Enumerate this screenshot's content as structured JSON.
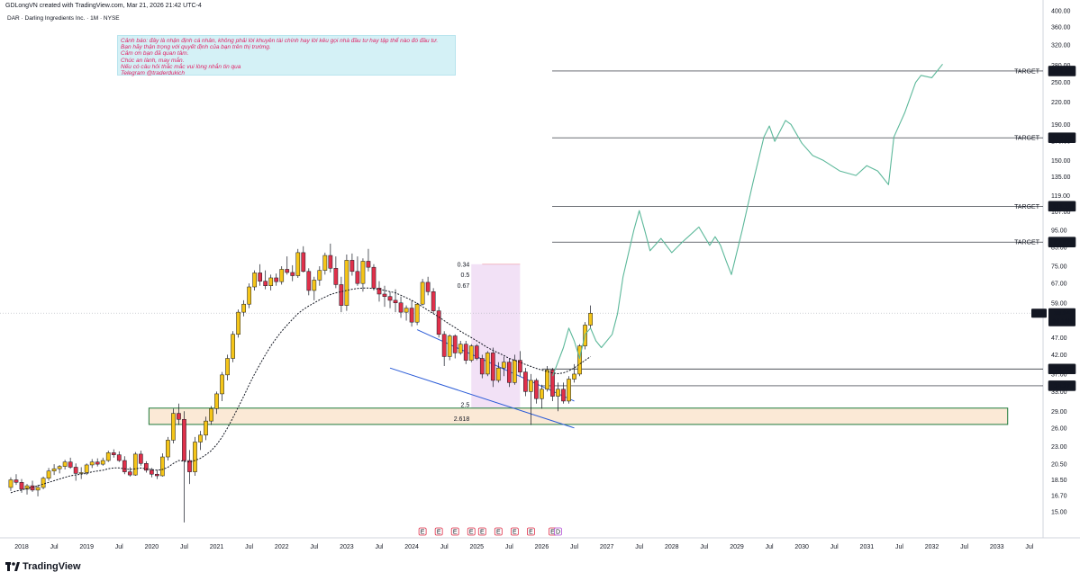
{
  "header": {
    "created_by": "GDLongVN created with TradingView.com, Mar 21, 2026 21:42 UTC-4",
    "symbol_line": "DAR · Darling Ingredients Inc. · 1M · NYSE"
  },
  "note": {
    "lines": [
      "Cảnh báo: đây là nhận định cá nhân, không phải lời khuyên tài chính hay lời kêu gọi nhà đầu tư hay tập thể nào đó đầu tư.",
      "Bạn hãy thận trọng với quyết định của bạn trên thị trường.",
      "Cảm ơn bạn đã quan tâm.",
      "Chúc an lành, may mắn.",
      "Nếu có câu hỏi thắc mắc vui lòng nhắn tin qua",
      "Telegram @traderdukich"
    ]
  },
  "brand": {
    "logo_text": "TradingView"
  },
  "colors": {
    "up": "#f5c518",
    "down": "#e0304a",
    "forecast": "#5cb89a",
    "channel": "#2a5bd7",
    "zone_fill": "#fbe9d6",
    "zone_border": "#1e7a3a",
    "ma": "#131722",
    "fib_band": "#e8c8ee"
  },
  "chart_data": {
    "type": "candlestick",
    "symbol": "DAR",
    "timeframe": "1M",
    "y_scale": "log",
    "ylim": [
      13.5,
      400
    ],
    "x_range": [
      "2017-11",
      "2033-10"
    ],
    "y_ticks": [
      "400.00",
      "360.00",
      "320.00",
      "280.00",
      "250.00",
      "220.00",
      "190.00",
      "170.00",
      "150.00",
      "135.00",
      "119.00",
      "107.00",
      "95.00",
      "85.00",
      "75.00",
      "67.00",
      "59.00",
      "53.00",
      "47.00",
      "42.00",
      "37.00",
      "33.00",
      "29.00",
      "26.00",
      "23.00",
      "20.50",
      "18.50",
      "16.70",
      "15.00"
    ],
    "x_ticks": [
      {
        "label": "2018",
        "t": "2018-01"
      },
      {
        "label": "Jul",
        "t": "2018-07"
      },
      {
        "label": "2019",
        "t": "2019-01"
      },
      {
        "label": "Jul",
        "t": "2019-07"
      },
      {
        "label": "2020",
        "t": "2020-01"
      },
      {
        "label": "Jul",
        "t": "2020-07"
      },
      {
        "label": "2021",
        "t": "2021-01"
      },
      {
        "label": "Jul",
        "t": "2021-07"
      },
      {
        "label": "2022",
        "t": "2022-01"
      },
      {
        "label": "Jul",
        "t": "2022-07"
      },
      {
        "label": "2023",
        "t": "2023-01"
      },
      {
        "label": "Jul",
        "t": "2023-07"
      },
      {
        "label": "2024",
        "t": "2024-01"
      },
      {
        "label": "Jul",
        "t": "2024-07"
      },
      {
        "label": "2025",
        "t": "2025-01"
      },
      {
        "label": "Jul",
        "t": "2025-07"
      },
      {
        "label": "2026",
        "t": "2026-01"
      },
      {
        "label": "Jul",
        "t": "2026-07"
      },
      {
        "label": "2027",
        "t": "2027-01"
      },
      {
        "label": "Jul",
        "t": "2027-07"
      },
      {
        "label": "2028",
        "t": "2028-01"
      },
      {
        "label": "Jul",
        "t": "2028-07"
      },
      {
        "label": "2029",
        "t": "2029-01"
      },
      {
        "label": "Jul",
        "t": "2029-07"
      },
      {
        "label": "2030",
        "t": "2030-01"
      },
      {
        "label": "Jul",
        "t": "2030-07"
      },
      {
        "label": "2031",
        "t": "2031-01"
      },
      {
        "label": "Jul",
        "t": "2031-07"
      },
      {
        "label": "2032",
        "t": "2032-01"
      },
      {
        "label": "Jul",
        "t": "2032-07"
      },
      {
        "label": "2033",
        "t": "2033-01"
      },
      {
        "label": "Jul",
        "t": "2033-07"
      }
    ],
    "candles_start": "2017-11",
    "candles": [
      [
        17.6,
        18.8,
        17.2,
        18.5
      ],
      [
        18.5,
        19.2,
        17.9,
        18.2
      ],
      [
        18.2,
        18.6,
        17.0,
        17.4
      ],
      [
        17.4,
        18.0,
        16.8,
        17.8
      ],
      [
        17.8,
        18.4,
        17.1,
        17.3
      ],
      [
        17.3,
        17.9,
        16.6,
        17.6
      ],
      [
        17.6,
        18.9,
        17.4,
        18.7
      ],
      [
        18.7,
        20.0,
        18.4,
        19.6
      ],
      [
        19.6,
        20.5,
        19.1,
        19.9
      ],
      [
        19.9,
        20.4,
        19.3,
        20.2
      ],
      [
        20.2,
        21.1,
        19.8,
        20.8
      ],
      [
        20.8,
        21.4,
        19.9,
        20.1
      ],
      [
        20.1,
        20.6,
        18.4,
        19.3
      ],
      [
        19.3,
        20.1,
        18.6,
        19.4
      ],
      [
        19.4,
        20.6,
        19.1,
        20.4
      ],
      [
        20.4,
        21.2,
        20.0,
        20.8
      ],
      [
        20.8,
        21.3,
        20.2,
        20.5
      ],
      [
        20.5,
        21.4,
        20.3,
        21.0
      ],
      [
        21.0,
        22.4,
        20.8,
        22.1
      ],
      [
        22.1,
        22.6,
        21.4,
        21.8
      ],
      [
        21.8,
        22.3,
        20.8,
        21.0
      ],
      [
        21.0,
        21.6,
        19.2,
        19.5
      ],
      [
        19.5,
        20.1,
        18.9,
        19.1
      ],
      [
        19.1,
        22.2,
        19.0,
        21.9
      ],
      [
        21.9,
        22.4,
        20.3,
        20.6
      ],
      [
        20.6,
        20.9,
        19.4,
        19.7
      ],
      [
        19.7,
        20.0,
        18.8,
        19.2
      ],
      [
        19.2,
        19.8,
        18.6,
        19.0
      ],
      [
        19.0,
        22.0,
        18.9,
        21.5
      ],
      [
        21.5,
        24.5,
        21.0,
        24.0
      ],
      [
        24.0,
        29.5,
        23.5,
        28.6
      ],
      [
        28.6,
        30.5,
        26.5,
        27.5
      ],
      [
        27.5,
        29.0,
        14.0,
        21.0
      ],
      [
        21.0,
        22.5,
        18.0,
        19.5
      ],
      [
        19.5,
        24.5,
        19.0,
        23.7
      ],
      [
        23.7,
        25.5,
        22.5,
        24.8
      ],
      [
        24.8,
        28.0,
        24.0,
        27.2
      ],
      [
        27.2,
        30.0,
        26.5,
        29.5
      ],
      [
        29.5,
        33.0,
        28.5,
        32.5
      ],
      [
        32.5,
        37.5,
        31.0,
        36.8
      ],
      [
        36.8,
        42.0,
        35.5,
        41.0
      ],
      [
        41.0,
        49.0,
        40.0,
        48.0
      ],
      [
        48.0,
        56.5,
        47.0,
        55.5
      ],
      [
        55.5,
        60.0,
        54.0,
        58.5
      ],
      [
        58.5,
        67.0,
        57.0,
        65.5
      ],
      [
        65.5,
        73.0,
        64.0,
        71.8
      ],
      [
        71.8,
        76.0,
        66.0,
        68.0
      ],
      [
        68.0,
        73.0,
        64.5,
        66.0
      ],
      [
        66.0,
        71.0,
        64.0,
        69.5
      ],
      [
        69.5,
        71.5,
        66.0,
        67.8
      ],
      [
        67.8,
        75.0,
        66.5,
        73.5
      ],
      [
        73.5,
        80.0,
        71.0,
        72.0
      ],
      [
        72.0,
        75.5,
        68.0,
        70.5
      ],
      [
        70.5,
        84.0,
        69.5,
        82.0
      ],
      [
        82.0,
        85.5,
        72.0,
        72.5
      ],
      [
        72.5,
        74.0,
        62.0,
        64.0
      ],
      [
        64.0,
        70.0,
        60.0,
        68.5
      ],
      [
        68.5,
        75.0,
        66.0,
        73.0
      ],
      [
        73.0,
        82.0,
        71.0,
        80.5
      ],
      [
        80.5,
        87.0,
        72.0,
        74.0
      ],
      [
        74.0,
        80.0,
        65.0,
        66.5
      ],
      [
        66.5,
        70.0,
        55.5,
        58.0
      ],
      [
        58.0,
        81.0,
        56.0,
        78.0
      ],
      [
        78.0,
        81.5,
        70.5,
        72.5
      ],
      [
        72.5,
        80.0,
        66.0,
        67.0
      ],
      [
        67.0,
        79.0,
        63.5,
        77.5
      ],
      [
        77.5,
        84.0,
        72.5,
        74.5
      ],
      [
        74.5,
        76.0,
        64.0,
        65.0
      ],
      [
        65.0,
        68.0,
        59.5,
        62.5
      ],
      [
        62.5,
        66.0,
        57.5,
        61.5
      ],
      [
        61.5,
        63.5,
        57.0,
        60.0
      ],
      [
        60.0,
        64.5,
        55.5,
        59.0
      ],
      [
        59.0,
        61.5,
        53.5,
        55.5
      ],
      [
        55.5,
        58.0,
        52.5,
        57.0
      ],
      [
        57.0,
        60.0,
        50.5,
        52.0
      ],
      [
        52.0,
        59.0,
        51.0,
        58.5
      ],
      [
        58.5,
        69.0,
        58.0,
        67.5
      ],
      [
        67.5,
        70.0,
        62.0,
        63.5
      ],
      [
        63.5,
        65.0,
        55.0,
        56.0
      ],
      [
        56.0,
        57.5,
        47.0,
        48.0
      ],
      [
        48.0,
        49.0,
        39.0,
        41.5
      ],
      [
        41.5,
        48.0,
        40.5,
        47.5
      ],
      [
        47.5,
        48.0,
        41.0,
        42.5
      ],
      [
        42.5,
        46.0,
        42.0,
        45.0
      ],
      [
        45.0,
        46.0,
        39.5,
        40.5
      ],
      [
        40.5,
        45.0,
        40.0,
        44.5
      ],
      [
        44.5,
        45.0,
        40.5,
        41.0
      ],
      [
        41.0,
        42.0,
        36.0,
        37.0
      ],
      [
        37.0,
        43.0,
        36.5,
        42.5
      ],
      [
        42.5,
        44.0,
        34.0,
        35.5
      ],
      [
        35.5,
        40.0,
        35.0,
        38.5
      ],
      [
        38.5,
        41.5,
        36.5,
        40.0
      ],
      [
        40.0,
        41.0,
        34.0,
        35.0
      ],
      [
        35.0,
        42.0,
        34.5,
        40.5
      ],
      [
        40.5,
        43.0,
        36.5,
        37.5
      ],
      [
        37.5,
        38.5,
        32.0,
        33.0
      ],
      [
        33.0,
        37.0,
        26.5,
        35.5
      ],
      [
        35.5,
        36.0,
        30.5,
        31.5
      ],
      [
        31.5,
        34.5,
        29.5,
        33.5
      ],
      [
        33.5,
        39.0,
        33.0,
        38.0
      ],
      [
        38.0,
        38.5,
        31.0,
        32.0
      ],
      [
        32.0,
        35.0,
        29.0,
        33.5
      ],
      [
        33.5,
        35.0,
        30.5,
        31.0
      ],
      [
        31.0,
        36.5,
        30.5,
        35.8
      ],
      [
        35.8,
        39.5,
        35.0,
        37.0
      ],
      [
        37.0,
        45.0,
        36.5,
        44.5
      ],
      [
        44.5,
        52.0,
        43.5,
        51.0
      ],
      [
        51.0,
        58.0,
        50.0,
        55.14
      ]
    ],
    "ma_values": [
      17.0,
      17.2,
      17.3,
      17.5,
      17.6,
      17.8,
      18.0,
      18.2,
      18.4,
      18.6,
      18.8,
      19.0,
      19.1,
      19.2,
      19.3,
      19.5,
      19.6,
      19.7,
      19.9,
      20.0,
      20.0,
      19.9,
      19.8,
      19.9,
      20.0,
      19.9,
      19.8,
      19.7,
      19.8,
      20.1,
      20.6,
      21.0,
      20.9,
      20.8,
      21.0,
      21.3,
      21.8,
      22.4,
      23.3,
      24.5,
      26.0,
      27.8,
      29.8,
      32.0,
      34.5,
      37.0,
      39.5,
      42.0,
      44.5,
      46.8,
      49.0,
      51.0,
      53.0,
      55.0,
      56.5,
      57.8,
      59.0,
      60.2,
      61.3,
      62.3,
      63.0,
      63.5,
      64.0,
      64.5,
      64.8,
      65.0,
      65.0,
      64.8,
      64.5,
      64.0,
      63.5,
      63.0,
      62.0,
      61.0,
      60.0,
      58.8,
      57.5,
      56.2,
      55.0,
      53.8,
      52.5,
      51.3,
      50.2,
      49.0,
      48.0,
      47.0,
      46.0,
      45.0,
      44.0,
      43.2,
      42.5,
      41.8,
      41.0,
      40.5,
      40.0,
      39.4,
      38.9,
      38.4,
      38.0,
      37.6,
      37.3,
      37.1,
      37.3,
      37.8,
      38.5,
      39.5,
      40.5,
      41.5
    ],
    "ma_start_index": 0,
    "ma_end_index": 106,
    "target_lines": [
      {
        "label": "TARGET",
        "value": "269.59",
        "price": 269.59
      },
      {
        "label": "TARGET",
        "value": "174.08",
        "price": 174.08
      },
      {
        "label": "TARGET",
        "value": "111.11",
        "price": 111.11
      },
      {
        "label": "TARGET",
        "value": "87.87",
        "price": 87.87
      }
    ],
    "support_lines": [
      {
        "value": "38.26",
        "price": 38.26
      },
      {
        "value": "34.27",
        "price": 34.27
      }
    ],
    "current_price": {
      "symbol": "DAR",
      "value": "55.14",
      "price": 55.14,
      "countdown": "9d 19h"
    },
    "forecast_path": [
      [
        "2026-03",
        36.5
      ],
      [
        "2026-05",
        44
      ],
      [
        "2026-06",
        50
      ],
      [
        "2026-07",
        46
      ],
      [
        "2026-08",
        41
      ],
      [
        "2026-09",
        48
      ],
      [
        "2026-10",
        50
      ],
      [
        "2026-11",
        46
      ],
      [
        "2026-12",
        44
      ],
      [
        "2027-02",
        48
      ],
      [
        "2027-03",
        55
      ],
      [
        "2027-04",
        70
      ],
      [
        "2027-06",
        95
      ],
      [
        "2027-07",
        108
      ],
      [
        "2027-08",
        95
      ],
      [
        "2027-09",
        83
      ],
      [
        "2027-11",
        90
      ],
      [
        "2028-01",
        82
      ],
      [
        "2028-03",
        88
      ],
      [
        "2028-06",
        97
      ],
      [
        "2028-08",
        86
      ],
      [
        "2028-09",
        91
      ],
      [
        "2028-10",
        86
      ],
      [
        "2028-11",
        78
      ],
      [
        "2028-12",
        71
      ],
      [
        "2029-02",
        95
      ],
      [
        "2029-04",
        130
      ],
      [
        "2029-06",
        175
      ],
      [
        "2029-07",
        188
      ],
      [
        "2029-08",
        170
      ],
      [
        "2029-10",
        195
      ],
      [
        "2029-11",
        190
      ],
      [
        "2030-01",
        168
      ],
      [
        "2030-03",
        155
      ],
      [
        "2030-05",
        150
      ],
      [
        "2030-08",
        140
      ],
      [
        "2030-11",
        136
      ],
      [
        "2031-01",
        145
      ],
      [
        "2031-03",
        140
      ],
      [
        "2031-05",
        128
      ],
      [
        "2031-06",
        175
      ],
      [
        "2031-08",
        205
      ],
      [
        "2031-10",
        250
      ],
      [
        "2031-11",
        262
      ],
      [
        "2032-01",
        258
      ],
      [
        "2032-03",
        282
      ]
    ],
    "demand_zone": {
      "from": "2020-01",
      "to": "2033-03",
      "bottom": 26.6,
      "top": 29.6
    },
    "channel": {
      "upper": {
        "from": [
          "2024-02",
          49.5
        ],
        "to": [
          "2026-07",
          31.0
        ]
      },
      "lower": {
        "from": [
          "2023-09",
          38.5
        ],
        "to": [
          "2026-07",
          26.0
        ]
      }
    },
    "fib_band": {
      "from": "2024-12",
      "to": "2025-09",
      "top": 76,
      "bottom": 26.5
    },
    "fib_labels": [
      {
        "text": "0.34",
        "price": 76
      },
      {
        "text": "0.5",
        "price": 71
      },
      {
        "text": "0.67",
        "price": 66
      },
      {
        "text": "2.5",
        "price": 30.3
      },
      {
        "text": "2.618",
        "price": 27.6
      }
    ],
    "earnings_markers": {
      "label": "E",
      "dates": [
        "2024-03",
        "2024-06",
        "2024-09",
        "2024-12",
        "2025-02",
        "2025-05",
        "2025-08",
        "2025-11",
        "2026-03"
      ]
    },
    "other_markers": [
      {
        "label": "D",
        "t": "2026-04"
      }
    ]
  }
}
